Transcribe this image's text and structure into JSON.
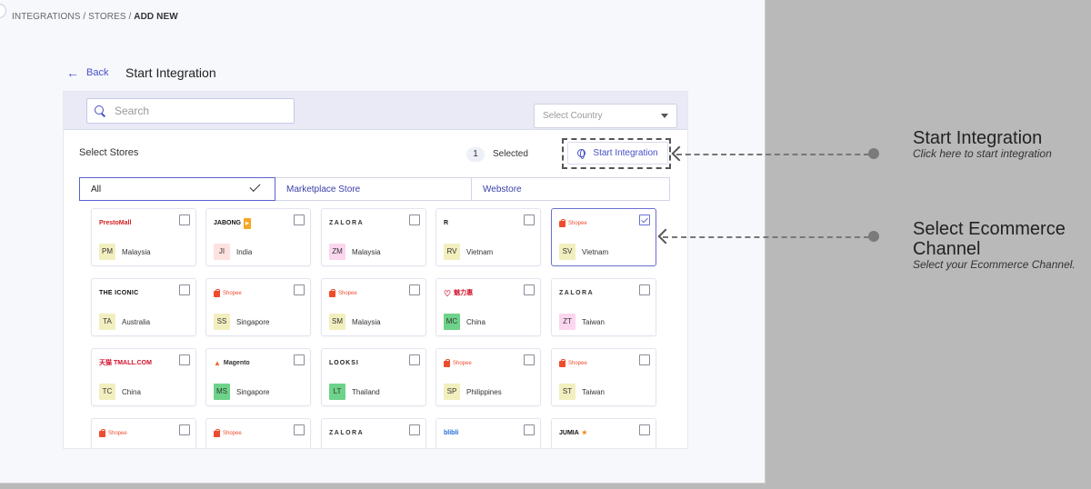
{
  "breadcrumb": {
    "path": "INTEGRATIONS / STORES / ",
    "current": "ADD NEW"
  },
  "header": {
    "back_label": "Back",
    "title": "Start Integration"
  },
  "search": {
    "placeholder": "Search"
  },
  "country_select": {
    "placeholder": "Select Country"
  },
  "selection": {
    "label": "Select Stores",
    "count": "1",
    "selected_label": "Selected",
    "start_button": "Start Integration"
  },
  "tabs": [
    {
      "label": "All"
    },
    {
      "label": "Marketplace Store"
    },
    {
      "label": "Webstore"
    }
  ],
  "stores": [
    {
      "brand": "PrestoMall",
      "code": "PM",
      "country": "Malaysia",
      "code_color": "#f2efbf",
      "selected": false
    },
    {
      "brand": "JABONG",
      "code": "JI",
      "country": "India",
      "code_color": "#fde2df",
      "selected": false
    },
    {
      "brand": "ZALORA",
      "code": "ZM",
      "country": "Malaysia",
      "code_color": "#fbd6ee",
      "selected": false
    },
    {
      "brand": "R",
      "code": "RV",
      "country": "Vietnam",
      "code_color": "#f2efbf",
      "selected": false
    },
    {
      "brand": "Shopee",
      "code": "SV",
      "country": "Vietnam",
      "code_color": "#f2efbf",
      "selected": true
    },
    {
      "brand": "THE ICONIC",
      "code": "TA",
      "country": "Australia",
      "code_color": "#f2efbf",
      "selected": false
    },
    {
      "brand": "Shopee",
      "code": "SS",
      "country": "Singapore",
      "code_color": "#f2efbf",
      "selected": false
    },
    {
      "brand": "Shopee",
      "code": "SM",
      "country": "Malaysia",
      "code_color": "#f2efbf",
      "selected": false
    },
    {
      "brand": "魅力惠",
      "code": "MC",
      "country": "China",
      "code_color": "#6dd38a",
      "selected": false
    },
    {
      "brand": "ZALORA",
      "code": "ZT",
      "country": "Taiwan",
      "code_color": "#fbd6ee",
      "selected": false
    },
    {
      "brand": "天猫 TMALL.COM",
      "code": "TC",
      "country": "China",
      "code_color": "#f2efbf",
      "selected": false
    },
    {
      "brand": "Magento",
      "code": "MS",
      "country": "Singapore",
      "code_color": "#6dd38a",
      "selected": false
    },
    {
      "brand": "LOOKSI",
      "code": "LT",
      "country": "Thailand",
      "code_color": "#6dd38a",
      "selected": false
    },
    {
      "brand": "Shopee",
      "code": "SP",
      "country": "Philippines",
      "code_color": "#f2efbf",
      "selected": false
    },
    {
      "brand": "Shopee",
      "code": "ST",
      "country": "Taiwan",
      "code_color": "#f2efbf",
      "selected": false
    },
    {
      "brand": "Shopee",
      "code": "",
      "country": "",
      "code_color": "#f2efbf",
      "selected": false
    },
    {
      "brand": "Shopee",
      "code": "",
      "country": "",
      "code_color": "#f2efbf",
      "selected": false
    },
    {
      "brand": "ZALORA",
      "code": "",
      "country": "",
      "code_color": "#fbd6ee",
      "selected": false
    },
    {
      "brand": "blibli",
      "code": "",
      "country": "",
      "code_color": "#f2efbf",
      "selected": false
    },
    {
      "brand": "JUMIA",
      "code": "",
      "country": "",
      "code_color": "#f2efbf",
      "selected": false
    }
  ],
  "annotations": {
    "start": {
      "title": "Start Integration",
      "subtitle": "Click here to start integration"
    },
    "channel": {
      "title": "Select Ecommerce Channel",
      "subtitle": "Select your Ecommerce Channel."
    }
  },
  "colors": {
    "accent": "#4750c8",
    "shopee": "#ee4d2d"
  }
}
